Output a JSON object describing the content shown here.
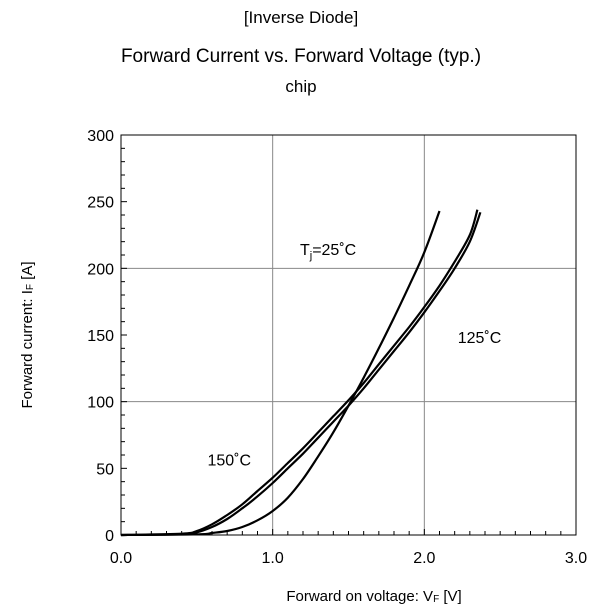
{
  "chart_data": {
    "type": "line",
    "title": "[Inverse Diode]",
    "subtitle": "Forward Current vs. Forward Voltage (typ.)",
    "subtitle2": "chip",
    "xlabel": "Forward on voltage: VF [V]",
    "xlabel_main": "Forward on voltage: V",
    "xlabel_sub": "F",
    "xlabel_unit": " [V]",
    "ylabel": "Forward current: IF [A]",
    "ylabel_main": "Forward current: I",
    "ylabel_sub": "F",
    "ylabel_unit": " [A]",
    "xlim": [
      0.0,
      3.0
    ],
    "ylim": [
      0,
      300
    ],
    "xticks": [
      "0.0",
      "1.0",
      "2.0",
      "3.0"
    ],
    "yticks": [
      "0",
      "50",
      "100",
      "150",
      "200",
      "250",
      "300"
    ],
    "grid": true,
    "series": [
      {
        "name": "Tj=25°C",
        "points": [
          [
            0.0,
            0
          ],
          [
            0.5,
            0.5
          ],
          [
            0.6,
            1.5
          ],
          [
            0.7,
            3
          ],
          [
            0.8,
            6
          ],
          [
            0.9,
            11
          ],
          [
            1.0,
            18
          ],
          [
            1.1,
            28
          ],
          [
            1.2,
            42
          ],
          [
            1.3,
            59
          ],
          [
            1.4,
            77
          ],
          [
            1.5,
            97
          ],
          [
            1.6,
            118
          ],
          [
            1.7,
            140
          ],
          [
            1.8,
            163
          ],
          [
            1.9,
            187
          ],
          [
            2.0,
            212
          ],
          [
            2.1,
            243
          ]
        ]
      },
      {
        "name": "125°C",
        "points": [
          [
            0.0,
            0
          ],
          [
            0.4,
            0.5
          ],
          [
            0.5,
            2
          ],
          [
            0.6,
            6
          ],
          [
            0.7,
            12
          ],
          [
            0.8,
            20
          ],
          [
            0.9,
            29
          ],
          [
            1.0,
            39
          ],
          [
            1.1,
            50
          ],
          [
            1.2,
            61
          ],
          [
            1.3,
            73
          ],
          [
            1.4,
            85
          ],
          [
            1.5,
            97
          ],
          [
            1.6,
            110
          ],
          [
            1.7,
            124
          ],
          [
            1.8,
            138
          ],
          [
            1.9,
            152
          ],
          [
            2.0,
            167
          ],
          [
            2.1,
            183
          ],
          [
            2.2,
            200
          ],
          [
            2.3,
            220
          ],
          [
            2.37,
            242
          ]
        ]
      },
      {
        "name": "150°C",
        "points": [
          [
            0.0,
            0
          ],
          [
            0.4,
            1
          ],
          [
            0.5,
            3
          ],
          [
            0.6,
            8
          ],
          [
            0.7,
            15
          ],
          [
            0.8,
            23
          ],
          [
            0.9,
            33
          ],
          [
            1.0,
            43
          ],
          [
            1.1,
            54
          ],
          [
            1.2,
            65
          ],
          [
            1.3,
            77
          ],
          [
            1.4,
            89
          ],
          [
            1.5,
            101
          ],
          [
            1.6,
            114
          ],
          [
            1.7,
            128
          ],
          [
            1.8,
            142
          ],
          [
            1.9,
            156
          ],
          [
            2.0,
            171
          ],
          [
            2.1,
            187
          ],
          [
            2.2,
            205
          ],
          [
            2.3,
            225
          ],
          [
            2.35,
            244
          ]
        ]
      }
    ],
    "annotations": [
      {
        "main": "T",
        "sub": "j",
        "rest": "=25˚C",
        "x": 1.18,
        "y": 210
      },
      {
        "main": "125˚C",
        "sub": "",
        "rest": "",
        "x": 2.22,
        "y": 144
      },
      {
        "main": "150˚C",
        "sub": "",
        "rest": "",
        "x": 0.57,
        "y": 52
      }
    ]
  }
}
